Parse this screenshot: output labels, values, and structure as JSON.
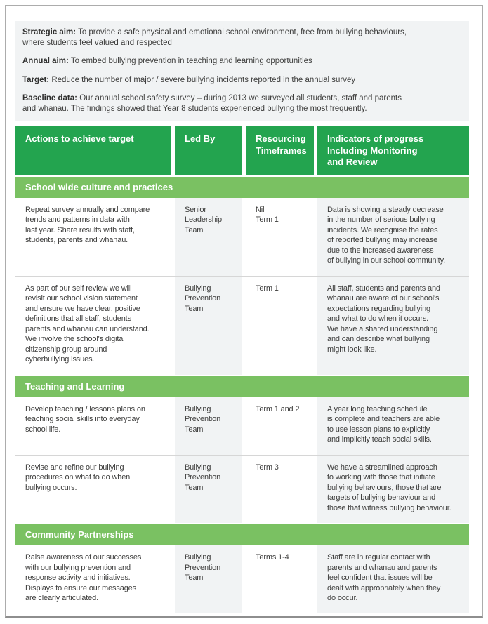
{
  "intro": [
    {
      "label": "Strategic aim:",
      "text": "To provide a safe physical and emotional school environment, free from bullying behaviours,\nwhere students feel valued and respected"
    },
    {
      "label": "Annual aim:",
      "text": "To embed bullying prevention in teaching and learning opportunities"
    },
    {
      "label": "Target:",
      "text": "Reduce the number of major / severe bullying incidents reported in the annual survey"
    },
    {
      "label": "Baseline data:",
      "text": "Our annual school safety survey – during 2013 we surveyed all students, staff and parents\nand whanau. The findings showed that Year 8 students experienced bullying the most frequently."
    }
  ],
  "table": {
    "headers": [
      "Actions to achieve target",
      "Led By",
      "Resourcing\nTimeframes",
      "Indicators of progress\nIncluding Monitoring\nand Review"
    ],
    "sections": [
      "School wide culture and practices",
      "Teaching and Learning",
      "Community Partnerships"
    ],
    "rows": [
      {
        "action": "Repeat survey annually and compare\ntrends and patterns in data with\nlast year. Share results with staff,\nstudents, parents and whanau.",
        "led_by": "Senior\nLeadership\nTeam",
        "timeframes": "Nil\nTerm 1",
        "indicators": "Data is showing a steady decrease\nin the number of serious bullying\nincidents. We recognise the rates\nof reported bullying may increase\ndue to the increased awareness\nof bullying in our school community."
      },
      {
        "action": "As part of our self review we will\nrevisit our school vision statement\nand ensure we have clear, positive\ndefinitions that all staff, students\nparents and whanau can understand.\nWe involve the school's digital\ncitizenship group around\ncyberbullying issues.",
        "led_by": "Bullying\nPrevention\nTeam",
        "timeframes": "Term 1",
        "indicators": "All staff, students and parents and\nwhanau are aware of our school's\nexpectations regarding bullying\nand what to do when it occurs.\nWe have a shared understanding\nand can describe what bullying\nmight look like."
      },
      {
        "action": "Develop teaching / lessons plans on\nteaching social skills into everyday\nschool life.",
        "led_by": "Bullying\nPrevention\nTeam",
        "timeframes": "Term 1 and 2",
        "indicators": "A year long teaching schedule\nis complete and teachers are able\nto use lesson plans to explicitly\nand implicitly teach social skills."
      },
      {
        "action": "Revise and refine our bullying\nprocedures on what to do when\nbullying occurs.",
        "led_by": "Bullying\nPrevention\nTeam",
        "timeframes": "Term 3",
        "indicators": "We have a streamlined approach\nto working with those that initiate\nbullying behaviours, those that are\ntargets of bullying behaviour and\nthose that witness bullying behaviour."
      },
      {
        "action": "Raise awareness of our successes\nwith our bullying prevention and\nresponse activity and initiatives.\nDisplays to ensure our messages\nare clearly articulated.",
        "led_by": "Bullying\nPrevention\nTeam",
        "timeframes": "Terms 1-4",
        "indicators": "Staff are in regular contact with\nparents and whanau and parents\nfeel confident that issues will be\ndealt with appropriately when they\ndo occur."
      }
    ]
  },
  "colors": {
    "header_green": "#23A44F",
    "section_green": "#7AC162",
    "column_tint": "#F1F3F4",
    "intro_background": "#F1F3F4",
    "header_text": "#FFFFFF",
    "body_text": "#3E3E3D",
    "divider": "#D6D6D6",
    "page_border": "#ACACAC"
  }
}
